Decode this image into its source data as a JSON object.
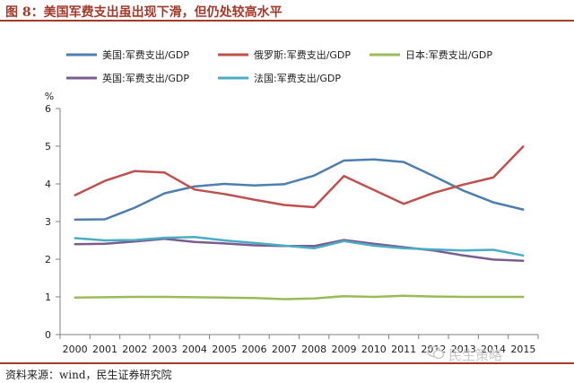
{
  "header": {
    "title": "图 8：美国军费支出虽出现下滑，但仍处较高水平"
  },
  "footer": {
    "source": "资料来源：wind，民生证券研究院",
    "watermark": "民生策略"
  },
  "chart_data": {
    "type": "line",
    "title": "图 8：美国军费支出虽出现下滑，但仍处较高水平",
    "ylabel": "%",
    "xlabel": "",
    "ylim": [
      0,
      6
    ],
    "yticks": [
      0,
      1,
      2,
      3,
      4,
      5,
      6
    ],
    "grid": false,
    "legend_position": "top",
    "categories": [
      "2000",
      "2001",
      "2002",
      "2003",
      "2004",
      "2005",
      "2006",
      "2007",
      "2008",
      "2009",
      "2010",
      "2011",
      "2012",
      "2013",
      "2014",
      "2015"
    ],
    "series": [
      {
        "name": "美国:军费支出/GDP",
        "color": "#4f7fae",
        "values": [
          3.05,
          3.06,
          3.37,
          3.75,
          3.93,
          4.0,
          3.96,
          3.99,
          4.22,
          4.62,
          4.65,
          4.58,
          4.21,
          3.82,
          3.51,
          3.32
        ]
      },
      {
        "name": "俄罗斯:军费支出/GDP",
        "color": "#c0504d",
        "values": [
          3.7,
          4.08,
          4.34,
          4.3,
          3.85,
          3.73,
          3.58,
          3.44,
          3.38,
          4.21,
          3.84,
          3.47,
          3.76,
          3.98,
          4.17,
          4.99
        ]
      },
      {
        "name": "日本:军费支出/GDP",
        "color": "#9bbb59",
        "values": [
          0.98,
          0.99,
          1.0,
          1.0,
          0.99,
          0.98,
          0.97,
          0.94,
          0.96,
          1.02,
          1.0,
          1.03,
          1.01,
          1.0,
          1.0,
          1.0
        ]
      },
      {
        "name": "英国:军费支出/GDP",
        "color": "#7a5c8e",
        "values": [
          2.4,
          2.41,
          2.47,
          2.54,
          2.46,
          2.42,
          2.37,
          2.35,
          2.35,
          2.51,
          2.41,
          2.32,
          2.23,
          2.1,
          1.99,
          1.96
        ]
      },
      {
        "name": "法国:军费支出/GDP",
        "color": "#4bacc6",
        "values": [
          2.56,
          2.5,
          2.51,
          2.57,
          2.59,
          2.5,
          2.43,
          2.36,
          2.29,
          2.48,
          2.36,
          2.29,
          2.26,
          2.23,
          2.25,
          2.1
        ]
      }
    ]
  }
}
